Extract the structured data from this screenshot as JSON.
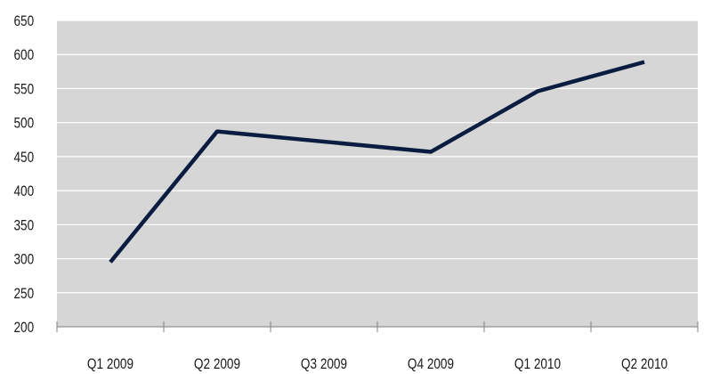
{
  "chart_data": {
    "type": "line",
    "title": "",
    "xlabel": "",
    "ylabel": "",
    "categories": [
      "Q1 2009",
      "Q2 2009",
      "Q3 2009",
      "Q4 2009",
      "Q1 2010",
      "Q2 2010"
    ],
    "series": [
      {
        "values": [
          295,
          487,
          472,
          457,
          546,
          589
        ],
        "color": "#0a1d40"
      }
    ],
    "ylim": [
      200,
      650
    ],
    "yticks": [
      200,
      250,
      300,
      350,
      400,
      450,
      500,
      550,
      600,
      650
    ],
    "grid": true,
    "legend": "none",
    "plot_background": "#d6d6d6",
    "gridline_color": "#ffffff"
  }
}
